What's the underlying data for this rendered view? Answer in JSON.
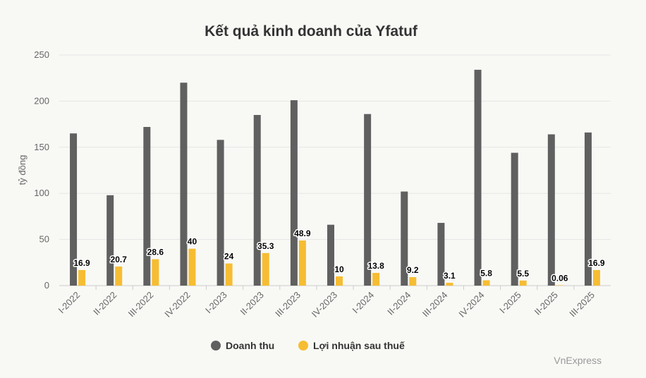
{
  "chart_data": {
    "type": "bar",
    "title": "Kết quả kinh doanh của Yfatuf",
    "ylabel": "tỷ đồng",
    "xlabel": "",
    "ylim": [
      0,
      250
    ],
    "yticks": [
      0,
      50,
      100,
      150,
      200,
      250
    ],
    "grid": true,
    "legend_position": "bottom",
    "categories": [
      "I-2022",
      "II-2022",
      "III-2022",
      "IV-2022",
      "I-2023",
      "II-2023",
      "III-2023",
      "IV-2023",
      "I-2024",
      "II-2024",
      "III-2024",
      "IV-2024",
      "I-2025",
      "II-2025",
      "III-2025"
    ],
    "series": [
      {
        "name": "Doanh thu",
        "color": "#606060",
        "values": [
          165,
          98,
          172,
          220,
          158,
          185,
          201,
          66,
          186,
          102,
          68,
          234,
          144,
          164,
          166
        ],
        "show_labels": false
      },
      {
        "name": "Lợi nhuận sau thuế",
        "color": "#f6bd33",
        "values": [
          16.9,
          20.7,
          28.6,
          40,
          24,
          35.3,
          48.9,
          10,
          13.8,
          9.2,
          3.1,
          5.8,
          5.5,
          0.06,
          16.9
        ],
        "labels": [
          "16.9",
          "20.7",
          "28.6",
          "40",
          "24",
          "35.3",
          "48.9",
          "10",
          "13.8",
          "9.2",
          "3.1",
          "5.8",
          "5.5",
          "0.06",
          "16.9"
        ],
        "show_labels": true
      }
    ]
  },
  "credit": "VnExpress"
}
